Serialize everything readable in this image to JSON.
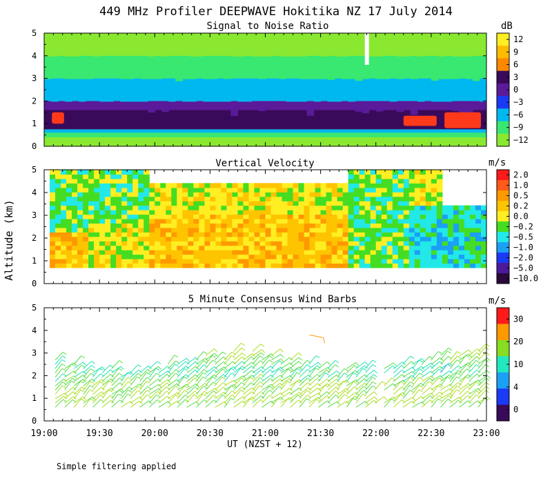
{
  "title": "449 MHz Profiler DEEPWAVE Hokitika NZ 17 July 2014",
  "footnote": "Simple filtering applied",
  "x_axis": {
    "ticks": [
      "19:00",
      "19:30",
      "20:00",
      "20:30",
      "21:00",
      "21:30",
      "22:00",
      "22:30",
      "23:00"
    ],
    "label": "UT  (NZST + 12)",
    "xlim": [
      19.0,
      23.0
    ]
  },
  "y_axis": {
    "label": "Altitude (km)",
    "ticks": [
      "0",
      "1",
      "2",
      "3",
      "4",
      "5"
    ],
    "ylim": [
      0,
      5
    ]
  },
  "chart_data": [
    {
      "type": "heatmap",
      "title": "Signal to Noise Ratio",
      "xlabel": "UT  (NZST + 12)",
      "ylabel": "Altitude (km)",
      "xlim": [
        19.0,
        23.0
      ],
      "ylim": [
        0,
        5
      ],
      "colorbar": {
        "unit": "dB",
        "tick_labels": [
          "12",
          "9",
          "6",
          "3",
          "0",
          "−3",
          "−6",
          "−9",
          "−12"
        ],
        "colors": [
          "#ffee22",
          "#ffbb00",
          "#ff8800",
          "#3a0a5a",
          "#5a1a9a",
          "#1a3af5",
          "#00b8f0",
          "#38e870",
          "#8ae830"
        ]
      },
      "layers": [
        {
          "from_km": 0.0,
          "to_km": 0.4,
          "level_db": -12
        },
        {
          "from_km": 0.4,
          "to_km": 0.6,
          "level_db": -9
        },
        {
          "from_km": 0.6,
          "to_km": 0.75,
          "level_db": -6
        },
        {
          "from_km": 0.75,
          "to_km": 1.6,
          "level_db": 3
        },
        {
          "from_km": 1.6,
          "to_km": 2.0,
          "level_db": 0
        },
        {
          "from_km": 2.0,
          "to_km": 3.0,
          "level_db": -6
        },
        {
          "from_km": 3.0,
          "to_km": 4.0,
          "level_db": -9
        },
        {
          "from_km": 4.0,
          "to_km": 5.0,
          "level_db": -12
        }
      ],
      "hotspots": [
        {
          "t_start": 19.07,
          "t_end": 19.18,
          "from_km": 1.0,
          "to_km": 1.5,
          "level_db": 9
        },
        {
          "t_start": 22.25,
          "t_end": 22.55,
          "from_km": 0.9,
          "to_km": 1.35,
          "level_db": 6
        },
        {
          "t_start": 22.62,
          "t_end": 22.95,
          "from_km": 0.8,
          "to_km": 1.5,
          "level_db": 9
        }
      ]
    },
    {
      "type": "heatmap",
      "title": "Vertical Velocity",
      "xlabel": "UT  (NZST + 12)",
      "ylabel": "Altitude (km)",
      "xlim": [
        19.0,
        23.0
      ],
      "ylim": [
        0,
        5
      ],
      "colorbar": {
        "unit": "m/s",
        "tick_labels": [
          "2.0",
          "1.0",
          "0.5",
          "0.2",
          "0.0",
          "−0.2",
          "−0.5",
          "−1.0",
          "−2.0",
          "−5.0",
          "−10.0"
        ],
        "colors": [
          "#ff1a1a",
          "#ff5a1a",
          "#ff9900",
          "#ffc400",
          "#ffee22",
          "#44dd22",
          "#22e8e8",
          "#1aa0f5",
          "#1a3af5",
          "#4a1a9a",
          "#2a0a3a"
        ]
      },
      "data_range_km": [
        0.7,
        5.0
      ],
      "regions": [
        {
          "t_start": 19.05,
          "t_end": 19.4,
          "from_km": 0.7,
          "to_km": 2.2,
          "w": 0.2
        },
        {
          "t_start": 19.05,
          "t_end": 19.4,
          "from_km": 2.2,
          "to_km": 5.0,
          "w": -0.2
        },
        {
          "t_start": 19.4,
          "t_end": 19.95,
          "from_km": 0.7,
          "to_km": 2.6,
          "w": 0.0
        },
        {
          "t_start": 19.4,
          "t_end": 19.95,
          "from_km": 2.6,
          "to_km": 5.0,
          "w": -0.2
        },
        {
          "t_start": 19.95,
          "t_end": 21.75,
          "from_km": 0.7,
          "to_km": 3.0,
          "w": 0.2
        },
        {
          "t_start": 19.95,
          "t_end": 21.75,
          "from_km": 3.0,
          "to_km": 4.5,
          "w": 0.0
        },
        {
          "t_start": 21.75,
          "t_end": 22.3,
          "from_km": 0.7,
          "to_km": 5.0,
          "w": -0.2
        },
        {
          "t_start": 22.3,
          "t_end": 23.0,
          "from_km": 0.7,
          "to_km": 3.5,
          "w": -0.5
        },
        {
          "t_start": 22.3,
          "t_end": 22.6,
          "from_km": 3.5,
          "to_km": 5.0,
          "w": 0.0
        }
      ]
    },
    {
      "type": "wind-barbs",
      "title": "5 Minute Consensus Wind Barbs",
      "xlabel": "UT  (NZST + 12)",
      "ylabel": "Altitude (km)",
      "xlim": [
        19.0,
        23.0
      ],
      "ylim": [
        0,
        5
      ],
      "colorbar": {
        "unit": "m/s",
        "tick_labels": [
          "30",
          "20",
          "10",
          "4",
          "0"
        ],
        "colors": [
          "#ff1a1a",
          "#ff9900",
          "#88dd22",
          "#22e8c0",
          "#1aa0f5",
          "#1a3af5",
          "#3a0a5a"
        ]
      },
      "wind_profile": [
        {
          "km": 0.5,
          "speed_ms": 12
        },
        {
          "km": 1.0,
          "speed_ms": 14
        },
        {
          "km": 1.5,
          "speed_ms": 12
        },
        {
          "km": 2.0,
          "speed_ms": 8
        },
        {
          "km": 2.5,
          "speed_ms": 10
        },
        {
          "km": 3.0,
          "speed_ms": 14
        },
        {
          "km": 3.8,
          "speed_ms": 20
        }
      ]
    }
  ]
}
